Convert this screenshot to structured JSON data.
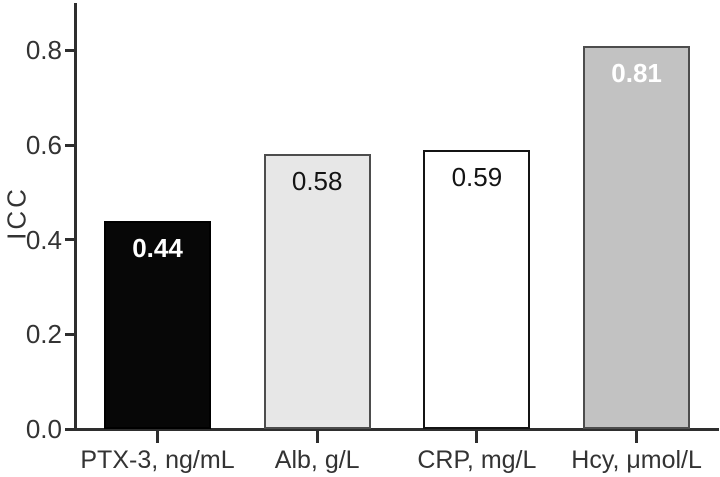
{
  "figure": {
    "background": "#ffffff",
    "axis_color": "#2e2e2e",
    "text_color": "#333333"
  },
  "chart_data": {
    "type": "bar",
    "title": "",
    "xlabel": "",
    "ylabel": "ICC",
    "ylim": [
      0.0,
      0.9
    ],
    "yticks": [
      "0.0",
      "0.2",
      "0.4",
      "0.6",
      "0.8"
    ],
    "ytick_values": [
      0.0,
      0.2,
      0.4,
      0.6,
      0.8
    ],
    "grid": false,
    "legend": false,
    "categories": [
      "PTX-3, ng/mL",
      "Alb, g/L",
      "CRP, mg/L",
      "Hcy, μmol/L"
    ],
    "values": [
      0.44,
      0.58,
      0.59,
      0.81
    ],
    "value_labels": [
      "0.44",
      "0.58",
      "0.59",
      "0.81"
    ],
    "bar_styles": [
      {
        "fill": "#070707",
        "border": "#000000",
        "label_color": "#ffffff",
        "label_weight": "bold"
      },
      {
        "fill": "#e7e7e7",
        "border": "#4d4d4d",
        "label_color": "#141414",
        "label_weight": "normal"
      },
      {
        "fill": "#ffffff",
        "border": "#141414",
        "label_color": "#141414",
        "label_weight": "normal"
      },
      {
        "fill": "#c2c2c2",
        "border": "#4d4d4d",
        "label_color": "#ffffff",
        "label_weight": "bold"
      }
    ]
  }
}
